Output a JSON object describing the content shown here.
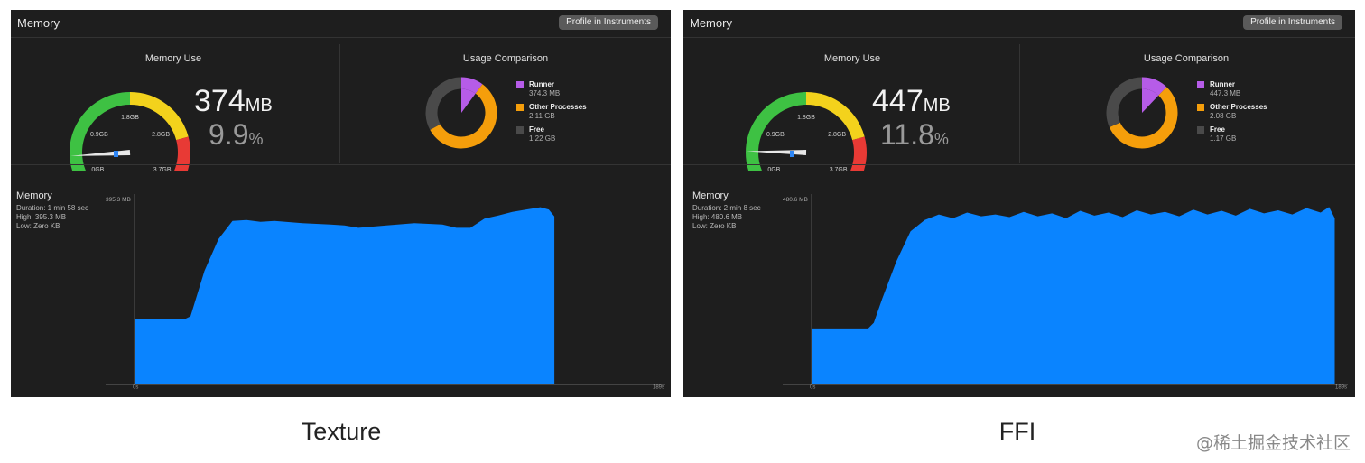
{
  "panels": [
    {
      "id": "texture",
      "header_title": "Memory",
      "profile_button": "Profile in Instruments",
      "memory_use_title": "Memory Use",
      "gauge_labels": [
        "0GB",
        "0.9GB",
        "1.8GB",
        "2.8GB",
        "3.7GB"
      ],
      "gauge_value_gb": 0.374,
      "gauge_max_gb": 3.7,
      "value": "374",
      "value_unit": "MB",
      "percent": "9.9",
      "percent_unit": "%",
      "usage_title": "Usage Comparison",
      "usage": [
        {
          "name": "Runner",
          "value": "374.3 MB",
          "gb": 0.3743,
          "color": "#b65ce8"
        },
        {
          "name": "Other Processes",
          "value": "2.11 GB",
          "gb": 2.11,
          "color": "#f59e0b"
        },
        {
          "name": "Free",
          "value": "1.22 GB",
          "gb": 1.22,
          "color": "#4a4a4a"
        }
      ],
      "chart_title": "Memory",
      "chart_duration": "Duration: 1 min 58 sec",
      "chart_high": "High: 395.3 MB",
      "chart_low": "Low: Zero KB",
      "chart_ymax_label": "395.3 MB",
      "chart_x_start": "0s",
      "chart_x_end": "189s",
      "chart_data": {
        "type": "area",
        "xlabel": "",
        "ylabel": "",
        "xlim": [
          0,
          189
        ],
        "ylim": [
          0,
          395.3
        ],
        "x": [
          0,
          3,
          18,
          20,
          22,
          25,
          30,
          35,
          40,
          45,
          50,
          60,
          70,
          75,
          80,
          90,
          100,
          110,
          115,
          120,
          125,
          130,
          135,
          140,
          145,
          148,
          150,
          150.01
        ],
        "y": [
          144,
          144,
          144,
          150,
          190,
          250,
          320,
          360,
          362,
          358,
          360,
          355,
          352,
          350,
          345,
          350,
          355,
          352,
          345,
          345,
          365,
          372,
          380,
          385,
          390,
          385,
          370,
          0
        ]
      }
    },
    {
      "id": "ffi",
      "header_title": "Memory",
      "profile_button": "Profile in Instruments",
      "memory_use_title": "Memory Use",
      "gauge_labels": [
        "0GB",
        "0.9GB",
        "1.8GB",
        "2.8GB",
        "3.7GB"
      ],
      "gauge_value_gb": 0.447,
      "gauge_max_gb": 3.7,
      "value": "447",
      "value_unit": "MB",
      "percent": "11.8",
      "percent_unit": "%",
      "usage_title": "Usage Comparison",
      "usage": [
        {
          "name": "Runner",
          "value": "447.3 MB",
          "gb": 0.4473,
          "color": "#b65ce8"
        },
        {
          "name": "Other Processes",
          "value": "2.08 GB",
          "gb": 2.08,
          "color": "#f59e0b"
        },
        {
          "name": "Free",
          "value": "1.17 GB",
          "gb": 1.17,
          "color": "#4a4a4a"
        }
      ],
      "chart_title": "Memory",
      "chart_duration": "Duration: 2 min 8 sec",
      "chart_high": "High: 480.6 MB",
      "chart_low": "Low: Zero KB",
      "chart_ymax_label": "480.6 MB",
      "chart_x_start": "0s",
      "chart_x_end": "189s",
      "chart_data": {
        "type": "area",
        "xlabel": "",
        "ylabel": "",
        "xlim": [
          0,
          189
        ],
        "ylim": [
          0,
          480.6
        ],
        "x": [
          0,
          5,
          20,
          22,
          25,
          30,
          35,
          40,
          45,
          50,
          55,
          60,
          65,
          70,
          75,
          80,
          85,
          90,
          95,
          100,
          105,
          110,
          115,
          120,
          125,
          130,
          135,
          140,
          145,
          150,
          155,
          160,
          165,
          170,
          175,
          180,
          183,
          185,
          185.01
        ],
        "y": [
          150,
          150,
          150,
          165,
          230,
          330,
          410,
          440,
          455,
          445,
          460,
          450,
          455,
          448,
          462,
          450,
          458,
          445,
          465,
          452,
          460,
          448,
          466,
          455,
          462,
          450,
          468,
          455,
          465,
          452,
          470,
          458,
          466,
          455,
          472,
          460,
          475,
          445,
          0
        ]
      }
    }
  ],
  "captions": [
    "Texture",
    "FFI"
  ],
  "watermark": "@稀土掘金技术社区"
}
